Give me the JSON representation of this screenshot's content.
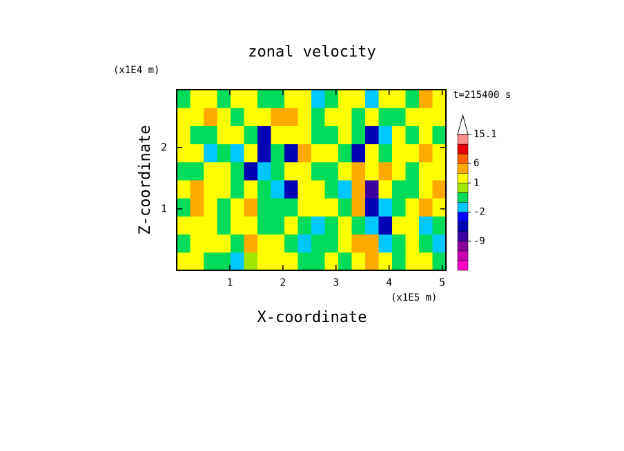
{
  "chart_data": {
    "type": "contour",
    "title": "zonal velocity",
    "subtitle": "t=215400 s",
    "x_label": "X-coordinate",
    "y_label": "Z-coordinate",
    "x_unit": "(x1E5 m)",
    "y_unit": "(x1E4 m)",
    "xlim": [
      0,
      5.07
    ],
    "ylim": [
      0,
      2.94
    ],
    "xticks": [
      1,
      2,
      3,
      4,
      5
    ],
    "yticks": [
      1,
      2
    ],
    "x": [
      0.127,
      0.38,
      0.634,
      0.887,
      1.141,
      1.394,
      1.648,
      1.901,
      2.155,
      2.408,
      2.662,
      2.915,
      3.169,
      3.422,
      3.676,
      3.929,
      4.183,
      4.436,
      4.69,
      4.943
    ],
    "y": [
      0.147,
      0.441,
      0.735,
      1.029,
      1.323,
      1.617,
      1.911,
      2.205,
      2.499,
      2.793
    ],
    "values": [
      [
        2,
        2,
        -0.5,
        -0.5,
        -1.5,
        0.5,
        2,
        2,
        2,
        -0.5,
        -0.5,
        2,
        -0.5,
        2,
        4,
        2,
        -0.5,
        2,
        2,
        -0.5
      ],
      [
        -0.5,
        2,
        2,
        2,
        -0.5,
        4,
        2,
        2,
        -0.5,
        -1.5,
        -0.5,
        -0.5,
        2,
        4,
        4,
        -1.5,
        -0.5,
        2,
        -0.5,
        -1.5
      ],
      [
        2,
        2,
        2,
        -0.5,
        2,
        2,
        -0.5,
        -0.5,
        2,
        -0.5,
        -1.5,
        -0.5,
        2,
        -0.5,
        -1.5,
        -5,
        2,
        2,
        -1.5,
        -0.5
      ],
      [
        -0.5,
        4,
        2,
        -0.5,
        2,
        4,
        -0.5,
        -0.5,
        -0.5,
        2,
        2,
        2,
        -0.5,
        4,
        -5,
        -1.5,
        -0.5,
        2,
        4,
        2
      ],
      [
        2,
        4,
        2,
        2,
        -0.5,
        2,
        -0.5,
        -1.5,
        -5,
        2,
        2,
        -0.5,
        -1.5,
        4,
        -7,
        2,
        -0.5,
        -0.5,
        2,
        4
      ],
      [
        -0.5,
        -0.5,
        2,
        2,
        -0.5,
        -5,
        -1.5,
        -0.5,
        2,
        2,
        -0.5,
        -0.5,
        2,
        4,
        2,
        4,
        2,
        -0.5,
        2,
        2
      ],
      [
        2,
        2,
        -1.5,
        -0.5,
        -1.5,
        2,
        -5,
        -0.5,
        -5,
        4,
        2,
        2,
        -0.5,
        -5,
        2,
        -0.5,
        2,
        2,
        4,
        2
      ],
      [
        2,
        -0.5,
        -0.5,
        2,
        2,
        -0.5,
        -5,
        2,
        2,
        2,
        -0.5,
        -0.5,
        2,
        -0.5,
        -5,
        -1.5,
        2,
        -0.5,
        2,
        -0.5
      ],
      [
        2,
        2,
        4,
        2,
        -0.5,
        2,
        2,
        4,
        4,
        2,
        -0.5,
        2,
        2,
        -0.5,
        2,
        -0.5,
        -0.5,
        2,
        2,
        2
      ],
      [
        -0.5,
        2,
        2,
        -0.5,
        2,
        2,
        -0.5,
        -0.5,
        2,
        2,
        -1.5,
        -0.5,
        2,
        2,
        -1.5,
        2,
        2,
        -0.5,
        4,
        2
      ]
    ],
    "levels": [
      -18,
      -15,
      -12,
      -9,
      -6,
      -4,
      -2,
      -1,
      0,
      1,
      3,
      6,
      9,
      12,
      15.1
    ],
    "colors": [
      "#ff00c8",
      "#c800b4",
      "#8c00a0",
      "#3c00a0",
      "#0000b4",
      "#0000ff",
      "#00c8ff",
      "#00dc5a",
      "#a0e600",
      "#ffff00",
      "#ffaa00",
      "#ff6400",
      "#e60000",
      "#ff8c8c"
    ],
    "colorbar_ticks": [
      15.1,
      6,
      1,
      -2,
      -9
    ]
  }
}
